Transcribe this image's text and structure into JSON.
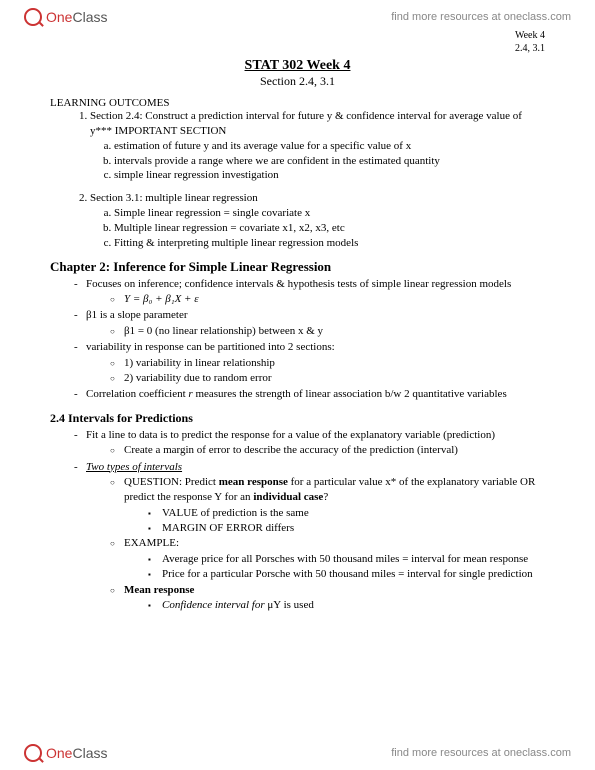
{
  "brand": {
    "one": "One",
    "class": "Class",
    "tagline": "find more resources at oneclass.com"
  },
  "meta": {
    "week": "Week 4",
    "sections": "2.4, 3.1"
  },
  "title": "STAT 302 Week 4",
  "subtitle": "Section 2.4, 3.1",
  "learning_outcomes_label": "LEARNING OUTCOMES",
  "lo": {
    "item1": "Section 2.4: Construct a prediction interval for future y & confidence interval for average value of y*** IMPORTANT SECTION",
    "item1a": "estimation of future y and its average value for a specific value of x",
    "item1b": "intervals provide a range where we are confident in the estimated quantity",
    "item1c": "simple linear regression investigation",
    "item2": "Section 3.1: multiple linear regression",
    "item2a": "Simple linear regression = single covariate x",
    "item2b": "Multiple linear regression = covariate x1, x2, x3, etc",
    "item2c": "Fitting & interpreting multiple linear regression models"
  },
  "chapter2_title": "Chapter 2: Inference for Simple Linear Regression",
  "ch2": {
    "b1": "Focuses on inference; confidence intervals & hypothesis tests of simple linear regression models",
    "formula": "Y = β₀ + β₁X + ε",
    "b2": "β1 is a slope parameter",
    "b2a": "β1 = 0 (no linear relationship) between x & y",
    "b3": "variability in response can be partitioned into 2 sections:",
    "b3a": "1) variability in linear relationship",
    "b3b": "2) variability due to random error",
    "b4_pre": "Correlation coefficient ",
    "b4_r": "r",
    "b4_post": " measures the strength of linear association b/w 2 quantitative variables"
  },
  "sec24_title": "2.4 Intervals for Predictions",
  "s24": {
    "b1": "Fit a line to data is to predict the response for a value of the explanatory variable (prediction)",
    "b1a": "Create a margin of error to describe the accuracy of the prediction (interval)",
    "b2": "Two types of intervals",
    "q_pre": "QUESTION: Predict ",
    "q_mean": "mean response",
    "q_mid": " for a particular value x* of the explanatory variable OR predict the response Y for an ",
    "q_ind": "individual case",
    "q_post": "?",
    "q_s1": "VALUE of prediction is the same",
    "q_s2": "MARGIN OF ERROR differs",
    "ex_label": "EXAMPLE:",
    "ex1": "Average price for all Porsches with 50 thousand miles = interval for mean response",
    "ex2": "Price for a particular Porsche with 50 thousand miles = interval for single prediction",
    "mr_label": "Mean response",
    "mr1_pre": "Confidence interval for",
    "mr1_post": " μY is used"
  }
}
